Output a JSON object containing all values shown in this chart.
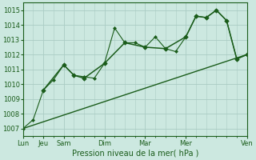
{
  "title": "Pression niveau de la mer( hPa )",
  "bg_color": "#cce8e0",
  "grid_color": "#aaccC4",
  "line_color": "#1a5c1a",
  "marker_color": "#1a5c1a",
  "ylim": [
    1006.5,
    1015.5
  ],
  "yticks": [
    1007,
    1008,
    1009,
    1010,
    1011,
    1012,
    1013,
    1014,
    1015
  ],
  "x_major_ticks": [
    0,
    1,
    2,
    4,
    6,
    8,
    11
  ],
  "x_minor_ticks": [
    0.5,
    1.5,
    2.5,
    3.0,
    3.5,
    4.5,
    5.0,
    5.5,
    6.5,
    7.0,
    7.5,
    8.5,
    9.0,
    9.5,
    10.0,
    10.5
  ],
  "x_label_map": {
    "0": "Lun",
    "1": "Jeu",
    "2": "Sam",
    "4": "Dim",
    "6": "Mar",
    "8": "Mer",
    "11": "Ven"
  },
  "series1_x": [
    0.0,
    0.5,
    1.0,
    1.5,
    2.0,
    2.5,
    3.0,
    3.5,
    4.0,
    4.5,
    5.0,
    5.5,
    6.0,
    6.5,
    7.0,
    7.5,
    8.0,
    8.5,
    9.0,
    9.5,
    10.0,
    10.5,
    11.0
  ],
  "series1_y": [
    1007.0,
    1007.6,
    1009.6,
    1010.3,
    1011.3,
    1010.6,
    1010.5,
    1010.4,
    1011.4,
    1013.8,
    1012.8,
    1012.8,
    1012.5,
    1013.2,
    1012.4,
    1012.2,
    1013.2,
    1014.6,
    1014.5,
    1015.0,
    1014.3,
    1011.7,
    1012.0
  ],
  "series2_x": [
    1.0,
    2.0,
    2.5,
    3.0,
    4.0,
    5.0,
    6.0,
    7.0,
    8.0,
    8.5,
    9.0,
    9.5,
    10.0,
    10.5,
    11.0
  ],
  "series2_y": [
    1009.6,
    1011.3,
    1010.6,
    1010.4,
    1011.4,
    1012.8,
    1012.5,
    1012.4,
    1013.2,
    1014.6,
    1014.5,
    1015.0,
    1014.3,
    1011.7,
    1012.0
  ],
  "trend_x": [
    0.0,
    11.0
  ],
  "trend_y": [
    1007.0,
    1012.0
  ],
  "xmin": 0,
  "xmax": 11
}
